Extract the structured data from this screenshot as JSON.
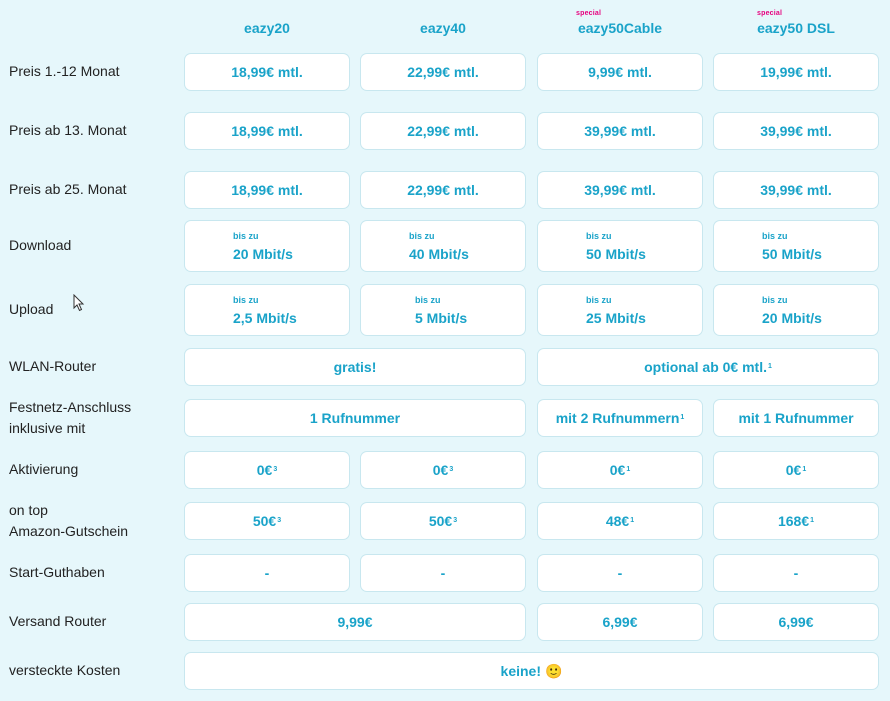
{
  "plans": [
    {
      "name": "eazy20",
      "special": ""
    },
    {
      "name": "eazy40",
      "special": ""
    },
    {
      "name": "eazy50Cable",
      "special": "special"
    },
    {
      "name": "eazy50 DSL",
      "special": "special"
    }
  ],
  "rows": {
    "preis_1_12": {
      "label": "Preis 1.-12 Monat",
      "values": [
        "18,99€ mtl.",
        "22,99€ mtl.",
        "9,99€ mtl.",
        "19,99€ mtl."
      ]
    },
    "preis_13": {
      "label": "Preis ab 13. Monat",
      "values": [
        "18,99€ mtl.",
        "22,99€ mtl.",
        "39,99€ mtl.",
        "39,99€ mtl."
      ]
    },
    "preis_25": {
      "label": "Preis ab 25. Monat",
      "values": [
        "18,99€ mtl.",
        "22,99€ mtl.",
        "39,99€ mtl.",
        "39,99€ mtl."
      ]
    },
    "download": {
      "label": "Download",
      "prefix": "bis zu",
      "values": [
        "20 Mbit/s",
        "40 Mbit/s",
        "50 Mbit/s",
        "50 Mbit/s"
      ]
    },
    "upload": {
      "label": "Upload",
      "prefix": "bis zu",
      "values": [
        "2,5 Mbit/s",
        "5 Mbit/s",
        "25 Mbit/s",
        "20 Mbit/s"
      ]
    },
    "wlan": {
      "label": "WLAN-Router",
      "values": [
        "gratis!",
        "optional ab 0€ mtl."
      ],
      "sup": [
        "",
        "1"
      ]
    },
    "festnetz": {
      "label_line1": "Festnetz-Anschluss",
      "label_line2": "inklusive mit",
      "values": [
        "1 Rufnummer",
        "mit 2 Rufnummern",
        "mit 1 Rufnummer"
      ],
      "sup": [
        "",
        "1",
        ""
      ]
    },
    "aktivierung": {
      "label": "Aktivierung",
      "values": [
        "0€",
        "0€",
        "0€",
        "0€"
      ],
      "sup": [
        "3",
        "3",
        "1",
        "1"
      ]
    },
    "amazon": {
      "label_line1": "on top",
      "label_line2": "Amazon-Gutschein",
      "values": [
        "50€",
        "50€",
        "48€",
        "168€"
      ],
      "sup": [
        "3",
        "3",
        "1",
        "1"
      ]
    },
    "guthaben": {
      "label": "Start-Guthaben",
      "values": [
        "-",
        "-",
        "-",
        "-"
      ]
    },
    "versand": {
      "label": "Versand Router",
      "values": [
        "9,99€",
        "6,99€",
        "6,99€"
      ]
    },
    "kosten": {
      "label": "versteckte Kosten",
      "value": "keine!",
      "emoji": "🙂"
    }
  }
}
